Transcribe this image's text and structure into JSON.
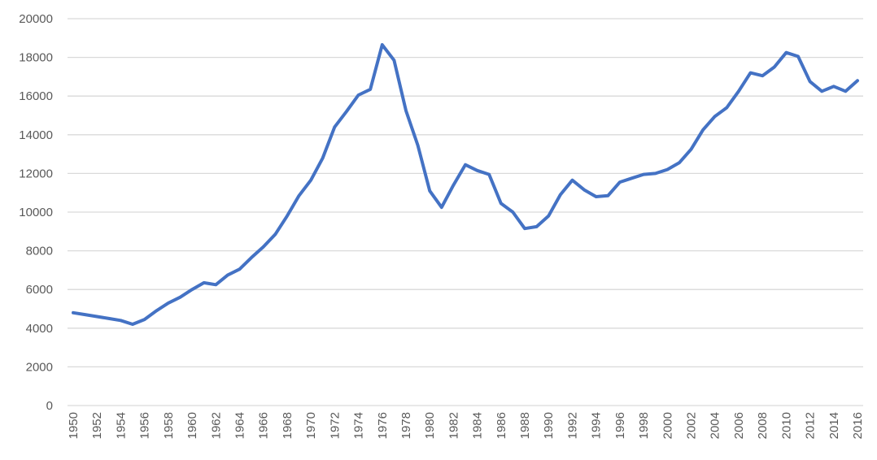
{
  "chart_data": {
    "type": "line",
    "title": "",
    "xlabel": "",
    "ylabel": "",
    "ylim": [
      0,
      20000
    ],
    "yticks": [
      0,
      2000,
      4000,
      6000,
      8000,
      10000,
      12000,
      14000,
      16000,
      18000,
      20000
    ],
    "xlim": [
      1950,
      2016
    ],
    "xticks": [
      1950,
      1952,
      1954,
      1956,
      1958,
      1960,
      1962,
      1964,
      1966,
      1968,
      1970,
      1972,
      1974,
      1976,
      1978,
      1980,
      1982,
      1984,
      1986,
      1988,
      1990,
      1992,
      1994,
      1996,
      1998,
      2000,
      2002,
      2004,
      2006,
      2008,
      2010,
      2012,
      2014,
      2016
    ],
    "grid": true,
    "legend": "none",
    "line_color": "#4472C4",
    "grid_color": "#D9D9D9",
    "series": [
      {
        "x": [
          1950,
          1951,
          1952,
          1953,
          1954,
          1955,
          1956,
          1957,
          1958,
          1959,
          1960,
          1961,
          1962,
          1963,
          1964,
          1965,
          1966,
          1967,
          1968,
          1969,
          1970,
          1971,
          1972,
          1973,
          1974,
          1975,
          1976,
          1977,
          1978,
          1979,
          1980,
          1981,
          1982,
          1983,
          1984,
          1985,
          1986,
          1987,
          1988,
          1989,
          1990,
          1991,
          1992,
          1993,
          1994,
          1995,
          1996,
          1997,
          1998,
          1999,
          2000,
          2001,
          2002,
          2003,
          2004,
          2005,
          2006,
          2007,
          2008,
          2009,
          2010,
          2011,
          2012,
          2013,
          2014,
          2015,
          2016
        ],
        "values": [
          4800,
          4700,
          4600,
          4500,
          4400,
          4200,
          4450,
          4900,
          5300,
          5600,
          6000,
          6350,
          6250,
          6750,
          7050,
          7650,
          8200,
          8850,
          9800,
          10850,
          11650,
          12800,
          14400,
          15200,
          16050,
          16350,
          18650,
          17850,
          15250,
          13450,
          11100,
          10250,
          11400,
          12450,
          12150,
          11950,
          10450,
          10000,
          9150,
          9250,
          9800,
          10900,
          11650,
          11150,
          10800,
          10850,
          11550,
          11750,
          11950,
          12000,
          12200,
          12550,
          13250,
          14250,
          14950,
          15400,
          16250,
          17200,
          17050,
          17500,
          18250,
          18050,
          16750,
          16250,
          16500,
          16250,
          16800
        ]
      }
    ]
  }
}
